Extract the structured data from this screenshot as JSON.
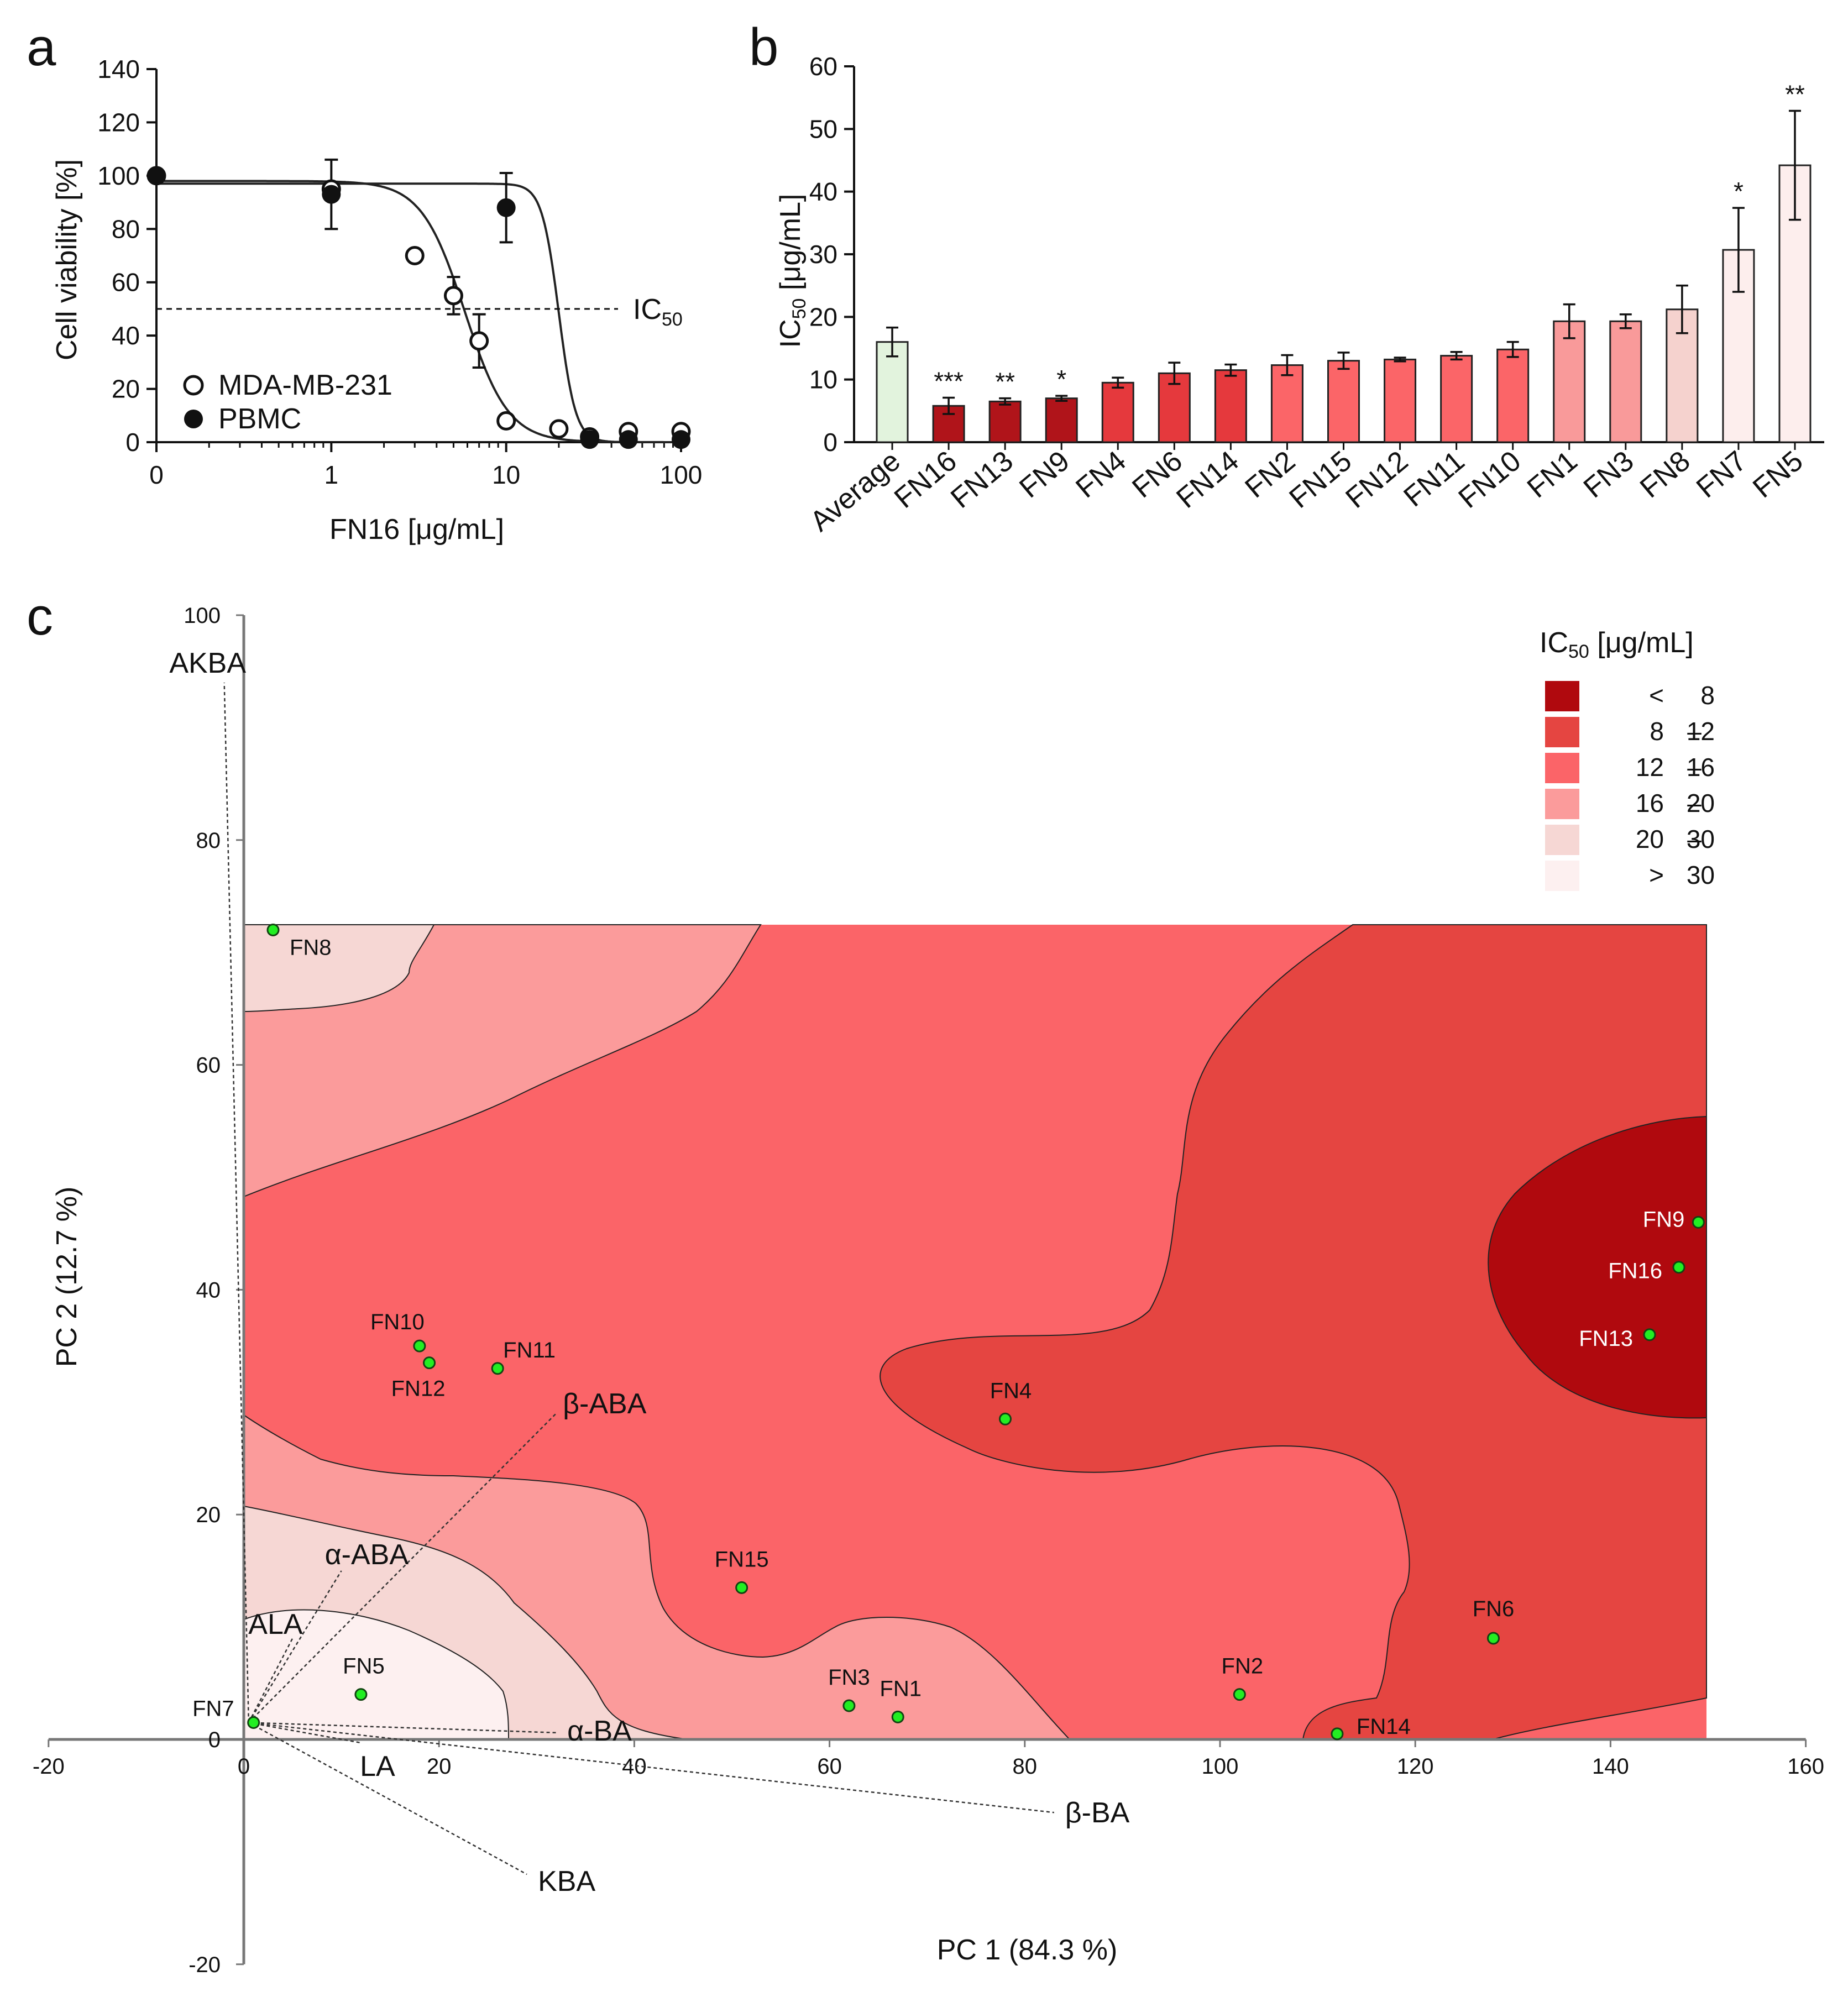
{
  "panels": {
    "a": "a",
    "b": "b",
    "c": "c"
  },
  "chart_data": [
    {
      "id": "a",
      "type": "scatter",
      "xlabel": "FN16 [μg/mL]",
      "ylabel": "Cell viability [%]",
      "xscale": "log",
      "xticks": [
        "0",
        "1",
        "10",
        "100"
      ],
      "ylim": [
        0,
        140
      ],
      "yticks": [
        0,
        20,
        40,
        60,
        80,
        100,
        120,
        140
      ],
      "ic50_line": {
        "y": 50,
        "label": "IC",
        "label_sub": "50"
      },
      "series": [
        {
          "name": "MDA-MB-231",
          "marker": "open",
          "x": [
            0,
            1,
            3,
            5,
            7,
            10,
            20,
            30,
            50,
            100
          ],
          "y": [
            100,
            95,
            70,
            55,
            38,
            8,
            5,
            2,
            4,
            4
          ],
          "err": [
            0,
            0,
            0,
            7,
            10,
            0,
            0,
            0,
            0,
            0
          ]
        },
        {
          "name": "PBMC",
          "marker": "filled",
          "x": [
            0,
            1,
            10,
            30,
            50,
            100
          ],
          "y": [
            100,
            93,
            88,
            1,
            1,
            1
          ],
          "err": [
            0,
            13,
            13,
            0,
            0,
            0
          ]
        }
      ],
      "legend_position": "bottom-left"
    },
    {
      "id": "b",
      "type": "bar",
      "ylabel_main": "IC",
      "ylabel_sub": "50",
      "ylabel_rest": " [μg/mL]",
      "ylim": [
        0,
        60
      ],
      "yticks": [
        0,
        10,
        20,
        30,
        40,
        50,
        60
      ],
      "categories": [
        "Average",
        "FN16",
        "FN13",
        "FN9",
        "FN4",
        "FN6",
        "FN14",
        "FN2",
        "FN15",
        "FN12",
        "FN11",
        "FN10",
        "FN1",
        "FN3",
        "FN8",
        "FN7",
        "FN5"
      ],
      "values": [
        16,
        5.8,
        6.5,
        7,
        9.5,
        11,
        11.5,
        12.3,
        13,
        13.2,
        13.8,
        14.8,
        19.3,
        19.3,
        21.2,
        30.7,
        44.2
      ],
      "errors": [
        2.3,
        1.3,
        0.5,
        0.4,
        0.8,
        1.7,
        0.9,
        1.6,
        1.3,
        0.3,
        0.6,
        1.2,
        2.7,
        1.1,
        3.8,
        6.7,
        8.7
      ],
      "significance": [
        "",
        "***",
        "**",
        "*",
        "",
        "",
        "",
        "",
        "",
        "",
        "",
        "",
        "",
        "",
        "",
        "*",
        "**"
      ],
      "colors": [
        "#e2f3dd",
        "#b0141a",
        "#b0141a",
        "#b0141a",
        "#e5393d",
        "#e5393d",
        "#e5393d",
        "#fb6568",
        "#fb6568",
        "#fb6568",
        "#fb6568",
        "#fb6568",
        "#f99a9a",
        "#f99a9a",
        "#f5d2ce",
        "#fdeeed",
        "#fdeeed"
      ]
    },
    {
      "id": "c",
      "type": "scatter",
      "xlabel": "PC 1 (84.3 %)",
      "ylabel": "PC 2 (12.7 %)",
      "xlim": [
        -20,
        160
      ],
      "ylim": [
        -20,
        100
      ],
      "xticks": [
        -20,
        0,
        20,
        40,
        60,
        80,
        100,
        120,
        140,
        160
      ],
      "yticks": [
        -20,
        0,
        20,
        40,
        60,
        80,
        100
      ],
      "points": [
        {
          "name": "FN8",
          "x": 3,
          "y": 72
        },
        {
          "name": "FN10",
          "x": 18,
          "y": 35
        },
        {
          "name": "FN12",
          "x": 19,
          "y": 33.5
        },
        {
          "name": "FN11",
          "x": 26,
          "y": 33
        },
        {
          "name": "FN4",
          "x": 78,
          "y": 28.5
        },
        {
          "name": "FN15",
          "x": 51,
          "y": 13.5
        },
        {
          "name": "FN5",
          "x": 12,
          "y": 4
        },
        {
          "name": "FN7",
          "x": 1,
          "y": 1.5
        },
        {
          "name": "FN3",
          "x": 62,
          "y": 3
        },
        {
          "name": "FN1",
          "x": 67,
          "y": 2
        },
        {
          "name": "FN2",
          "x": 102,
          "y": 4
        },
        {
          "name": "FN14",
          "x": 112,
          "y": 0.5
        },
        {
          "name": "FN6",
          "x": 128,
          "y": 9
        },
        {
          "name": "FN9",
          "x": 149,
          "y": 46
        },
        {
          "name": "FN16",
          "x": 147,
          "y": 42
        },
        {
          "name": "FN13",
          "x": 144,
          "y": 36
        }
      ],
      "loadings": [
        {
          "name": "AKBA",
          "x": -2,
          "y": 94
        },
        {
          "name": "β-ABA",
          "x": 32,
          "y": 29
        },
        {
          "name": "α-ABA",
          "x": 10,
          "y": 15
        },
        {
          "name": "ALA",
          "x": 5,
          "y": 9
        },
        {
          "name": "α-BA",
          "x": 32,
          "y": 0.6
        },
        {
          "name": "LA",
          "x": 12,
          "y": -0.3
        },
        {
          "name": "β-BA",
          "x": 83,
          "y": -6.5
        },
        {
          "name": "KBA",
          "x": 29,
          "y": -12
        }
      ],
      "legend": {
        "title_main": "IC",
        "title_sub": "50",
        "title_rest": " [μg/mL]",
        "entries": [
          {
            "left": "<",
            "dash": "",
            "right": "8",
            "color": "#b0090e"
          },
          {
            "left": "8",
            "dash": "–",
            "right": "12",
            "color": "#e54541"
          },
          {
            "left": "12",
            "dash": "–",
            "right": "16",
            "color": "#fb6468"
          },
          {
            "left": "16",
            "dash": "–",
            "right": "20",
            "color": "#fb9b9b"
          },
          {
            "left": "20",
            "dash": "–",
            "right": "30",
            "color": "#f6d7d4"
          },
          {
            "left": ">",
            "dash": "",
            "right": "30",
            "color": "#fdf0f0"
          }
        ]
      },
      "contour_colors": [
        "#fb6468",
        "#e54541",
        "#b0090e",
        "#fb9b9b",
        "#f6d7d4",
        "#fdf0f0"
      ]
    }
  ]
}
